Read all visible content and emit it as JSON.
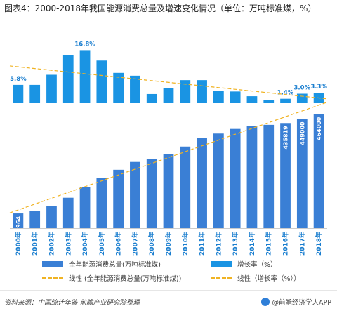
{
  "title": "图表4：2000-2018年我国能源消费总量及增速变化情况（单位：万吨标准煤，%）",
  "source": "资料来源：中国统计年鉴 前瞻产业研究院整理",
  "brand": "@前瞻经济学人APP",
  "colors": {
    "bar_total": "#3a7fd5",
    "bar_growth": "#1a94e3",
    "trend": "#f0b323",
    "label_growth": "#1a7ecf",
    "axis": "#cccccc"
  },
  "chart_data": {
    "type": "bar",
    "categories": [
      "2000年",
      "2001年",
      "2002年",
      "2003年",
      "2004年",
      "2005年",
      "2006年",
      "2007年",
      "2008年",
      "2009年",
      "2010年",
      "2011年",
      "2012年",
      "2013年",
      "2014年",
      "2015年",
      "2016年",
      "2017年",
      "2018年"
    ],
    "series": [
      {
        "name": "全年能源消费总量(万吨标准煤)",
        "values": [
          146964,
          155547,
          169577,
          197083,
          230281,
          261369,
          286467,
          311442,
          320611,
          336126,
          360648,
          387043,
          402138,
          416913,
          425806,
          429905,
          435819,
          449000,
          464000
        ],
        "data_labels": {
          "0": "146964",
          "16": "435819",
          "17": "449000",
          "18": "464000"
        }
      },
      {
        "name": "增长率（%）",
        "values": [
          5.8,
          5.8,
          9.0,
          15.3,
          16.8,
          13.5,
          9.6,
          8.7,
          2.9,
          4.8,
          7.3,
          7.3,
          3.9,
          3.7,
          2.2,
          0.9,
          1.4,
          3.0,
          3.3
        ],
        "data_labels": {
          "0": "5.8%",
          "4": "16.8%",
          "16": "1.4%",
          "17": "3.0%",
          "18": "3.3%"
        }
      }
    ],
    "trendlines": [
      {
        "name": "线性 (全年能源消费总量(万吨标准煤))",
        "of_series": 0
      },
      {
        "name": "线性（增长率（%））",
        "of_series": 1
      }
    ],
    "legend_position": "bottom",
    "grid": false
  }
}
